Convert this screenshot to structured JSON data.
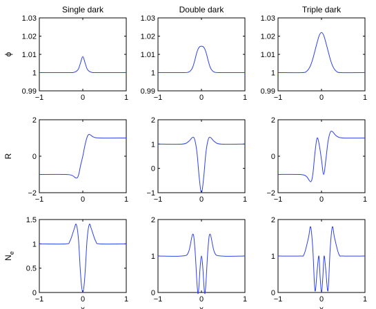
{
  "chart_data": [
    {
      "type": "line",
      "title": "Single dark",
      "xlabel": "",
      "ylabel": "ϕ",
      "xlim": [
        -1,
        1
      ],
      "ylim": [
        0.99,
        1.03
      ],
      "xticks": [
        -1,
        0,
        1
      ],
      "yticks": [
        0.99,
        1,
        1.01,
        1.02,
        1.03
      ],
      "xtick_labels": [
        "−1",
        "0",
        "1"
      ],
      "ytick_labels": [
        "0.99",
        "1",
        "1.01",
        "1.02",
        "1.03"
      ],
      "color": "#2b3ff0",
      "x": [
        -1,
        -0.3,
        -0.2,
        -0.15,
        -0.1,
        -0.05,
        0,
        0.05,
        0.1,
        0.15,
        0.2,
        0.3,
        1
      ],
      "y": [
        1,
        1,
        1.0002,
        1.0007,
        1.002,
        1.0055,
        1.0088,
        1.0055,
        1.002,
        1.0007,
        1.0002,
        1,
        1
      ]
    },
    {
      "type": "line",
      "title": "Double dark",
      "xlabel": "",
      "ylabel": "",
      "xlim": [
        -1,
        1
      ],
      "ylim": [
        0.99,
        1.03
      ],
      "xticks": [
        -1,
        0,
        1
      ],
      "yticks": [
        0.99,
        1,
        1.01,
        1.02,
        1.03
      ],
      "xtick_labels": [
        "−1",
        "0",
        "1"
      ],
      "ytick_labels": [
        "0.99",
        "1",
        "1.01",
        "1.02",
        "1.03"
      ],
      "color": "#2b3ff0",
      "x": [
        -1,
        -0.4,
        -0.3,
        -0.25,
        -0.2,
        -0.15,
        -0.1,
        -0.05,
        0,
        0.05,
        0.1,
        0.15,
        0.2,
        0.25,
        0.3,
        0.4,
        1
      ],
      "y": [
        1,
        1,
        1.0003,
        1.001,
        1.003,
        1.007,
        1.0115,
        1.014,
        1.0145,
        1.014,
        1.0115,
        1.007,
        1.003,
        1.001,
        1.0003,
        1,
        1
      ]
    },
    {
      "type": "line",
      "title": "Triple dark",
      "xlabel": "",
      "ylabel": "",
      "xlim": [
        -1,
        1
      ],
      "ylim": [
        0.99,
        1.03
      ],
      "xticks": [
        -1,
        0,
        1
      ],
      "yticks": [
        0.99,
        1,
        1.01,
        1.02,
        1.03
      ],
      "xtick_labels": [
        "−1",
        "0",
        "1"
      ],
      "ytick_labels": [
        "0.99",
        "1",
        "1.01",
        "1.02",
        "1.03"
      ],
      "color": "#2b3ff0",
      "x": [
        -1,
        -0.45,
        -0.35,
        -0.3,
        -0.25,
        -0.2,
        -0.15,
        -0.1,
        -0.05,
        0,
        0.05,
        0.1,
        0.15,
        0.2,
        0.25,
        0.3,
        0.35,
        0.45,
        1
      ],
      "y": [
        1,
        1,
        1.0006,
        1.0018,
        1.004,
        1.0075,
        1.012,
        1.0165,
        1.0205,
        1.022,
        1.0205,
        1.0165,
        1.012,
        1.0075,
        1.004,
        1.0018,
        1.0006,
        1,
        1
      ]
    },
    {
      "type": "line",
      "title": "",
      "xlabel": "",
      "ylabel": "R",
      "xlim": [
        -1,
        1
      ],
      "ylim": [
        -2,
        2
      ],
      "xticks": [
        -1,
        0,
        1
      ],
      "yticks": [
        -2,
        0,
        2
      ],
      "xtick_labels": [
        "−1",
        "0",
        "1"
      ],
      "ytick_labels": [
        "−2",
        "0",
        "2"
      ],
      "color": "#2b3ff0",
      "x": [
        -1,
        -0.4,
        -0.25,
        -0.15,
        -0.1,
        -0.05,
        0,
        0.05,
        0.1,
        0.15,
        0.25,
        0.4,
        1
      ],
      "y": [
        -1,
        -1,
        -1.05,
        -1.2,
        -1.05,
        -0.5,
        0,
        0.6,
        1.05,
        1.2,
        1.05,
        1,
        1
      ]
    },
    {
      "type": "line",
      "title": "",
      "xlabel": "",
      "ylabel": "",
      "xlim": [
        -1,
        1
      ],
      "ylim": [
        -1,
        2
      ],
      "xticks": [
        -1,
        0,
        1
      ],
      "yticks": [
        -1,
        0,
        1,
        2
      ],
      "xtick_labels": [
        "−1",
        "0",
        "1"
      ],
      "ytick_labels": [
        "−1",
        "0",
        "1",
        "2"
      ],
      "color": "#2b3ff0",
      "x": [
        -1,
        -0.45,
        -0.3,
        -0.2,
        -0.15,
        -0.1,
        -0.05,
        0,
        0.05,
        0.1,
        0.15,
        0.2,
        0.3,
        0.45,
        1
      ],
      "y": [
        1,
        1,
        1.1,
        1.28,
        1.15,
        0.6,
        -0.4,
        -1,
        -0.4,
        0.6,
        1.15,
        1.28,
        1.1,
        1,
        1
      ]
    },
    {
      "type": "line",
      "title": "",
      "xlabel": "",
      "ylabel": "",
      "xlim": [
        -1,
        1
      ],
      "ylim": [
        -2,
        2
      ],
      "xticks": [
        -1,
        0,
        1
      ],
      "yticks": [
        -2,
        0,
        2
      ],
      "xtick_labels": [
        "−1",
        "0",
        "1"
      ],
      "ytick_labels": [
        "−2",
        "0",
        "2"
      ],
      "color": "#2b3ff0",
      "x": [
        -1,
        -0.5,
        -0.35,
        -0.25,
        -0.2,
        -0.15,
        -0.1,
        -0.05,
        0,
        0.05,
        0.1,
        0.15,
        0.2,
        0.25,
        0.35,
        0.5,
        1
      ],
      "y": [
        -1,
        -1,
        -1.1,
        -1.4,
        -1.0,
        0.2,
        1.0,
        0.6,
        -0.2,
        -1.0,
        -0.2,
        0.8,
        1.3,
        1.35,
        1.1,
        1,
        1
      ]
    },
    {
      "type": "line",
      "title": "",
      "xlabel": "x",
      "ylabel": "N_e",
      "xlim": [
        -1,
        1
      ],
      "ylim": [
        0,
        1.5
      ],
      "xticks": [
        -1,
        0,
        1
      ],
      "yticks": [
        0,
        0.5,
        1,
        1.5
      ],
      "xtick_labels": [
        "−1",
        "0",
        "1"
      ],
      "ytick_labels": [
        "0",
        "0.5",
        "1",
        "1.5"
      ],
      "color": "#2b3ff0",
      "x": [
        -1,
        -0.4,
        -0.3,
        -0.2,
        -0.15,
        -0.1,
        -0.06,
        -0.03,
        0,
        0.03,
        0.06,
        0.1,
        0.15,
        0.2,
        0.3,
        0.4,
        1
      ],
      "y": [
        1,
        1,
        1.05,
        1.3,
        1.4,
        1.1,
        0.5,
        0.15,
        0,
        0.15,
        0.5,
        1.1,
        1.4,
        1.3,
        1.05,
        1,
        1
      ]
    },
    {
      "type": "line",
      "title": "",
      "xlabel": "x",
      "ylabel": "",
      "xlim": [
        -1,
        1
      ],
      "ylim": [
        0,
        2
      ],
      "xticks": [
        -1,
        0,
        1
      ],
      "yticks": [
        0,
        1,
        2
      ],
      "xtick_labels": [
        "−1",
        "0",
        "1"
      ],
      "ytick_labels": [
        "0",
        "1",
        "2"
      ],
      "color": "#2b3ff0",
      "x": [
        -1,
        -0.45,
        -0.3,
        -0.2,
        -0.15,
        -0.1,
        -0.07,
        -0.03,
        0,
        0.03,
        0.07,
        0.1,
        0.15,
        0.2,
        0.3,
        0.45,
        1
      ],
      "y": [
        1,
        1,
        1.1,
        1.6,
        1.2,
        0.2,
        0,
        0.7,
        1.0,
        0.7,
        0,
        0.2,
        1.2,
        1.6,
        1.1,
        1,
        1
      ],
      "smooth": true
    },
    {
      "type": "line",
      "title": "",
      "xlabel": "x",
      "ylabel": "",
      "xlim": [
        -1,
        1
      ],
      "ylim": [
        0,
        2
      ],
      "xticks": [
        -1,
        0,
        1
      ],
      "yticks": [
        0,
        1,
        2
      ],
      "xtick_labels": [
        "−1",
        "0",
        "1"
      ],
      "ytick_labels": [
        "0",
        "1",
        "2"
      ],
      "color": "#2b3ff0",
      "x": [
        -1,
        -0.5,
        -0.4,
        -0.3,
        -0.25,
        -0.2,
        -0.15,
        -0.1,
        -0.06,
        -0.03,
        0,
        0.03,
        0.06,
        0.1,
        0.15,
        0.2,
        0.25,
        0.3,
        0.4,
        0.5,
        1
      ],
      "y": [
        1,
        1,
        1.05,
        1.5,
        1.8,
        1.2,
        0.05,
        0.6,
        1.0,
        0.4,
        0,
        0.4,
        1.0,
        0.6,
        0.05,
        1.2,
        1.8,
        1.5,
        1.05,
        1,
        1
      ]
    }
  ]
}
